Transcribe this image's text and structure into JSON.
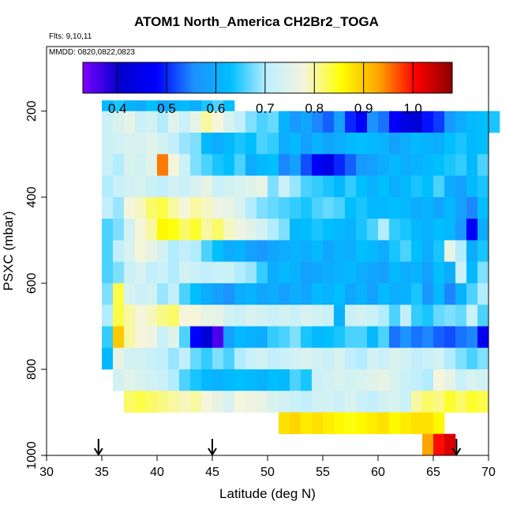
{
  "chart_data": {
    "type": "heatmap",
    "title": "ATOM1 North_America CH2Br2_TOGA",
    "flights_text": "Flts: 9,10,11",
    "mmdd_text": "MMDD: 0820,0822,0823",
    "xlabel": "Latitude (deg N)",
    "ylabel": "PSXC (mbar)",
    "xlim": [
      30,
      70
    ],
    "ylim": [
      1000,
      50
    ],
    "x_ticks": [
      "30",
      "35",
      "40",
      "45",
      "50",
      "55",
      "60",
      "65",
      "70"
    ],
    "y_ticks": [
      "200",
      "400",
      "600",
      "800",
      "1000"
    ],
    "colorbar": {
      "range": [
        0.33,
        1.08
      ],
      "ticks": [
        "0.4",
        "0.5",
        "0.6",
        "0.7",
        "0.8",
        "0.9",
        "1.0"
      ],
      "colors": [
        "#7F00FF",
        "#0000CD",
        "#0000FF",
        "#1E90FF",
        "#00BFFF",
        "#BFEFFF",
        "#F5F5DC",
        "#FFFF00",
        "#FFA500",
        "#FF0000",
        "#8B0000"
      ]
    },
    "lat_step": 1,
    "p_step": 50,
    "pressure_rows": [
      {
        "p": 200,
        "lon0": 35,
        "vals": [
          0.62,
          0.64,
          0.61,
          0.6,
          0.63,
          0.59,
          0.61,
          0.62,
          0.6,
          0.64,
          0.66,
          0.63
        ]
      },
      {
        "p": 225,
        "lon0": 35,
        "vals": [
          0.72,
          0.74,
          0.76,
          0.72,
          0.73,
          0.7,
          0.75,
          0.72,
          0.76,
          0.8,
          0.78,
          0.74,
          0.71,
          0.68,
          0.66,
          0.67,
          0.61,
          0.57,
          0.59,
          0.55,
          0.53,
          0.58,
          0.5,
          0.48,
          0.56,
          0.54,
          0.47,
          0.44,
          0.42,
          0.49,
          0.51,
          0.57,
          0.6,
          0.62,
          0.63,
          0.64
        ]
      },
      {
        "p": 275,
        "lon0": 35,
        "vals": [
          0.72,
          0.73,
          0.74,
          0.74,
          0.75,
          0.73,
          0.71,
          0.69,
          0.68,
          0.62,
          0.6,
          0.62,
          0.64,
          0.63,
          0.66,
          0.65,
          0.6,
          0.62,
          0.58,
          0.61,
          0.59,
          0.6,
          0.62,
          0.63,
          0.62,
          0.61,
          0.58,
          0.6,
          0.62,
          0.61,
          0.6,
          0.63,
          0.64,
          0.62,
          0.63
        ]
      },
      {
        "p": 325,
        "lon0": 35,
        "vals": [
          0.72,
          0.7,
          0.74,
          0.73,
          0.75,
          0.95,
          0.78,
          0.72,
          0.68,
          0.66,
          0.64,
          0.63,
          0.66,
          0.6,
          0.62,
          0.63,
          0.55,
          0.58,
          0.52,
          0.47,
          0.44,
          0.5,
          0.53,
          0.57,
          0.58,
          0.6,
          0.62,
          0.6,
          0.61,
          0.62,
          0.63,
          0.64,
          0.65,
          0.62,
          0.66
        ]
      },
      {
        "p": 375,
        "lon0": 35,
        "vals": [
          0.7,
          0.72,
          0.73,
          0.74,
          0.72,
          0.71,
          0.73,
          0.72,
          0.74,
          0.76,
          0.72,
          0.73,
          0.74,
          0.75,
          0.76,
          0.68,
          0.72,
          0.69,
          0.66,
          0.65,
          0.64,
          0.62,
          0.65,
          0.63,
          0.61,
          0.63,
          0.6,
          0.62,
          0.64,
          0.63,
          0.66,
          0.6,
          0.58,
          0.62,
          0.64
        ]
      },
      {
        "p": 425,
        "lon0": 35,
        "vals": [
          0.71,
          0.69,
          0.78,
          0.79,
          0.82,
          0.83,
          0.8,
          0.78,
          0.8,
          0.79,
          0.77,
          0.76,
          0.74,
          0.7,
          0.68,
          0.67,
          0.66,
          0.65,
          0.64,
          0.66,
          0.67,
          0.66,
          0.63,
          0.64,
          0.62,
          0.62,
          0.63,
          0.62,
          0.6,
          0.61,
          0.59,
          0.62,
          0.58,
          0.55,
          0.63
        ]
      },
      {
        "p": 475,
        "lon0": 35,
        "vals": [
          0.66,
          0.68,
          0.73,
          0.78,
          0.8,
          0.86,
          0.85,
          0.82,
          0.84,
          0.8,
          0.82,
          0.79,
          0.77,
          0.75,
          0.73,
          0.7,
          0.68,
          0.62,
          0.63,
          0.64,
          0.63,
          0.62,
          0.61,
          0.64,
          0.66,
          0.7,
          0.65,
          0.64,
          0.62,
          0.61,
          0.63,
          0.62,
          0.57,
          0.47,
          0.6
        ]
      },
      {
        "p": 525,
        "lon0": 35,
        "vals": [
          0.66,
          0.71,
          0.74,
          0.78,
          0.76,
          0.73,
          0.7,
          0.71,
          0.7,
          0.66,
          0.63,
          0.6,
          0.61,
          0.58,
          0.57,
          0.59,
          0.6,
          0.61,
          0.6,
          0.62,
          0.59,
          0.61,
          0.6,
          0.63,
          0.62,
          0.6,
          0.64,
          0.66,
          0.63,
          0.6,
          0.64,
          0.76,
          0.7,
          0.6,
          0.64
        ]
      },
      {
        "p": 575,
        "lon0": 35,
        "vals": [
          0.66,
          0.68,
          0.72,
          0.74,
          0.71,
          0.72,
          0.7,
          0.73,
          0.72,
          0.71,
          0.72,
          0.72,
          0.7,
          0.69,
          0.65,
          0.6,
          0.62,
          0.61,
          0.58,
          0.59,
          0.6,
          0.61,
          0.62,
          0.6,
          0.59,
          0.58,
          0.62,
          0.6,
          0.61,
          0.58,
          0.63,
          0.6,
          0.72,
          0.62,
          0.68
        ]
      },
      {
        "p": 625,
        "lon0": 35,
        "vals": [
          0.68,
          0.83,
          0.74,
          0.72,
          0.73,
          0.69,
          0.71,
          0.66,
          0.63,
          0.6,
          0.58,
          0.56,
          0.6,
          0.61,
          0.59,
          0.6,
          0.58,
          0.6,
          0.59,
          0.62,
          0.61,
          0.63,
          0.59,
          0.61,
          0.58,
          0.62,
          0.6,
          0.61,
          0.64,
          0.57,
          0.62,
          0.55,
          0.61,
          0.66,
          0.7
        ]
      },
      {
        "p": 675,
        "lon0": 35,
        "vals": [
          0.7,
          0.83,
          0.8,
          0.78,
          0.79,
          0.81,
          0.82,
          0.78,
          0.78,
          0.76,
          0.76,
          0.73,
          0.72,
          0.74,
          0.73,
          0.72,
          0.73,
          0.72,
          0.74,
          0.73,
          0.72,
          0.61,
          0.72,
          0.73,
          0.72,
          0.7,
          0.66,
          0.71,
          0.65,
          0.64,
          0.67,
          0.68,
          0.67,
          0.72,
          0.66
        ]
      },
      {
        "p": 725,
        "lon0": 35,
        "vals": [
          0.65,
          0.9,
          0.8,
          0.78,
          0.77,
          0.72,
          0.75,
          0.66,
          0.48,
          0.42,
          0.36,
          0.58,
          0.62,
          0.61,
          0.6,
          0.65,
          0.66,
          0.68,
          0.64,
          0.62,
          0.63,
          0.64,
          0.66,
          0.66,
          0.62,
          0.66,
          0.54,
          0.56,
          0.54,
          0.55,
          0.53,
          0.52,
          0.54,
          0.55,
          0.46
        ]
      },
      {
        "p": 775,
        "lon0": 35,
        "vals": [
          0.62,
          0.76,
          0.73,
          0.73,
          0.72,
          0.71,
          0.69,
          0.71,
          0.67,
          0.65,
          0.68,
          0.66,
          0.7,
          0.72,
          0.73,
          0.71,
          0.72,
          0.73,
          0.74,
          0.73,
          0.72,
          0.74,
          0.71,
          0.7,
          0.73,
          0.72,
          0.74,
          0.73,
          0.71,
          0.72,
          0.73,
          0.7,
          0.68,
          0.66,
          0.68
        ]
      },
      {
        "p": 825,
        "lon0": 36,
        "vals": [
          0.73,
          0.75,
          0.74,
          0.73,
          0.72,
          0.7,
          0.66,
          0.64,
          0.62,
          0.61,
          0.62,
          0.63,
          0.62,
          0.61,
          0.63,
          0.62,
          0.66,
          0.64,
          0.72,
          0.73,
          0.74,
          0.73,
          0.74,
          0.75,
          0.76,
          0.74,
          0.72,
          0.71,
          0.7,
          0.78,
          0.76,
          0.72,
          0.74,
          0.73
        ]
      },
      {
        "p": 875,
        "lon0": 37,
        "vals": [
          0.82,
          0.83,
          0.82,
          0.81,
          0.8,
          0.79,
          0.8,
          0.78,
          0.76,
          0.74,
          0.78,
          0.77,
          0.76,
          0.74,
          0.73,
          0.72,
          0.71,
          0.73,
          0.73,
          0.72,
          0.74,
          0.72,
          0.71,
          0.73,
          0.74,
          0.72,
          0.8,
          0.82,
          0.81,
          0.84,
          0.82,
          0.84,
          0.83
        ]
      },
      {
        "p": 925,
        "lon0": 51,
        "vals": [
          0.88,
          0.89,
          0.87,
          0.88,
          0.87,
          0.86,
          0.85,
          0.86,
          0.87,
          0.88,
          0.86,
          0.87,
          0.88,
          0.88,
          0.86
        ]
      },
      {
        "p": 975,
        "lon0": 64,
        "vals": [
          0.93,
          1.0,
          1.03
        ]
      }
    ],
    "arrows_at_latitude": [
      34.7,
      45,
      67.1
    ]
  }
}
